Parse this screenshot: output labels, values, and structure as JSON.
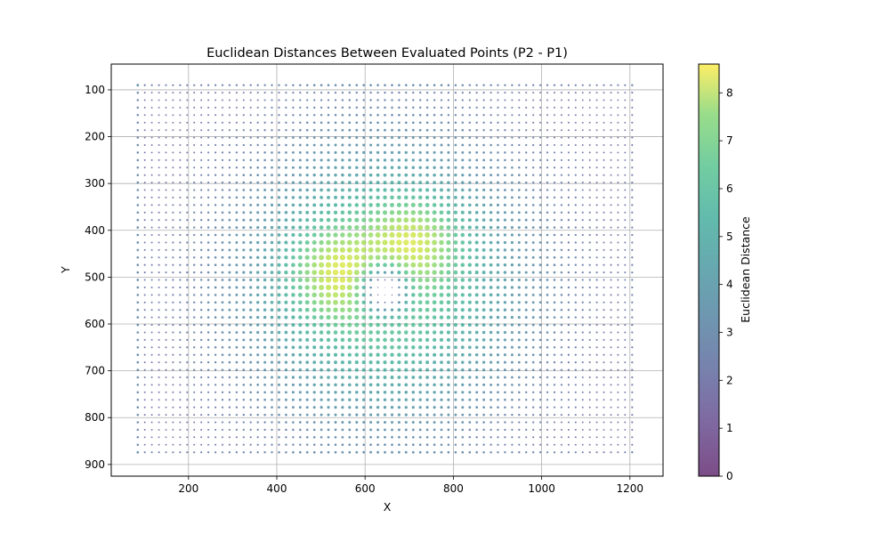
{
  "chart_data": {
    "type": "scatter",
    "title": "Euclidean Distances Between Evaluated Points (P2 - P1)",
    "xlabel": "X",
    "ylabel": "Y",
    "xlim": [
      25,
      1275
    ],
    "ylim": [
      925,
      45
    ],
    "y_inverted": true,
    "grid": true,
    "x_ticks": [
      200,
      400,
      600,
      800,
      1000,
      1200
    ],
    "y_ticks": [
      100,
      200,
      300,
      400,
      500,
      600,
      700,
      800,
      900
    ],
    "points_grid": {
      "x_range": [
        85,
        1215
      ],
      "y_range": [
        90,
        880
      ],
      "spacing": 16
    },
    "value_field_summary": [
      {
        "x": 530,
        "y": 490,
        "value": 8.6,
        "note": "peak"
      },
      {
        "x": 710,
        "y": 420,
        "value": 8.5,
        "note": "peak"
      },
      {
        "x": 645,
        "y": 528,
        "value": 0.0,
        "note": "center minimum"
      },
      {
        "x": 640,
        "y": 520,
        "value": 6.0,
        "note": "ring"
      },
      {
        "x": 85,
        "y": 90,
        "value": 3.5,
        "note": "corner"
      },
      {
        "x": 1215,
        "y": 880,
        "value": 3.5,
        "note": "corner"
      }
    ],
    "colorbar": {
      "label": "Euclidean Distance",
      "min": 0,
      "max": 8.6,
      "ticks": [
        0,
        1,
        2,
        3,
        4,
        5,
        6,
        7,
        8
      ],
      "colormap": "viridis",
      "alpha": 0.7
    }
  }
}
